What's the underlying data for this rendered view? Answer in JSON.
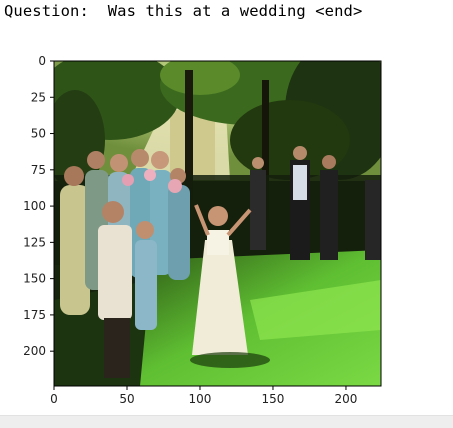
{
  "question": "Question:  Was this at a wedding <end>",
  "chart_data": {
    "type": "image",
    "title": "",
    "xlabel": "",
    "ylabel": "",
    "xlim": [
      0,
      224
    ],
    "ylim": [
      224,
      0
    ],
    "x_ticks": [
      0,
      50,
      100,
      150,
      200
    ],
    "y_ticks": [
      0,
      25,
      50,
      75,
      100,
      125,
      150,
      175,
      200
    ],
    "grid": false,
    "image": {
      "description_colors": {
        "sky": "#c9d98a",
        "foliage_dark": "#1c2a12",
        "foliage": "#3e6a1f",
        "grass_bright": "#6dcf3a",
        "grass_shadow": "#1f3a10",
        "dress_white": "#f1ecd8",
        "bridesmaid_dress": "#6fa9b8"
      }
    }
  }
}
